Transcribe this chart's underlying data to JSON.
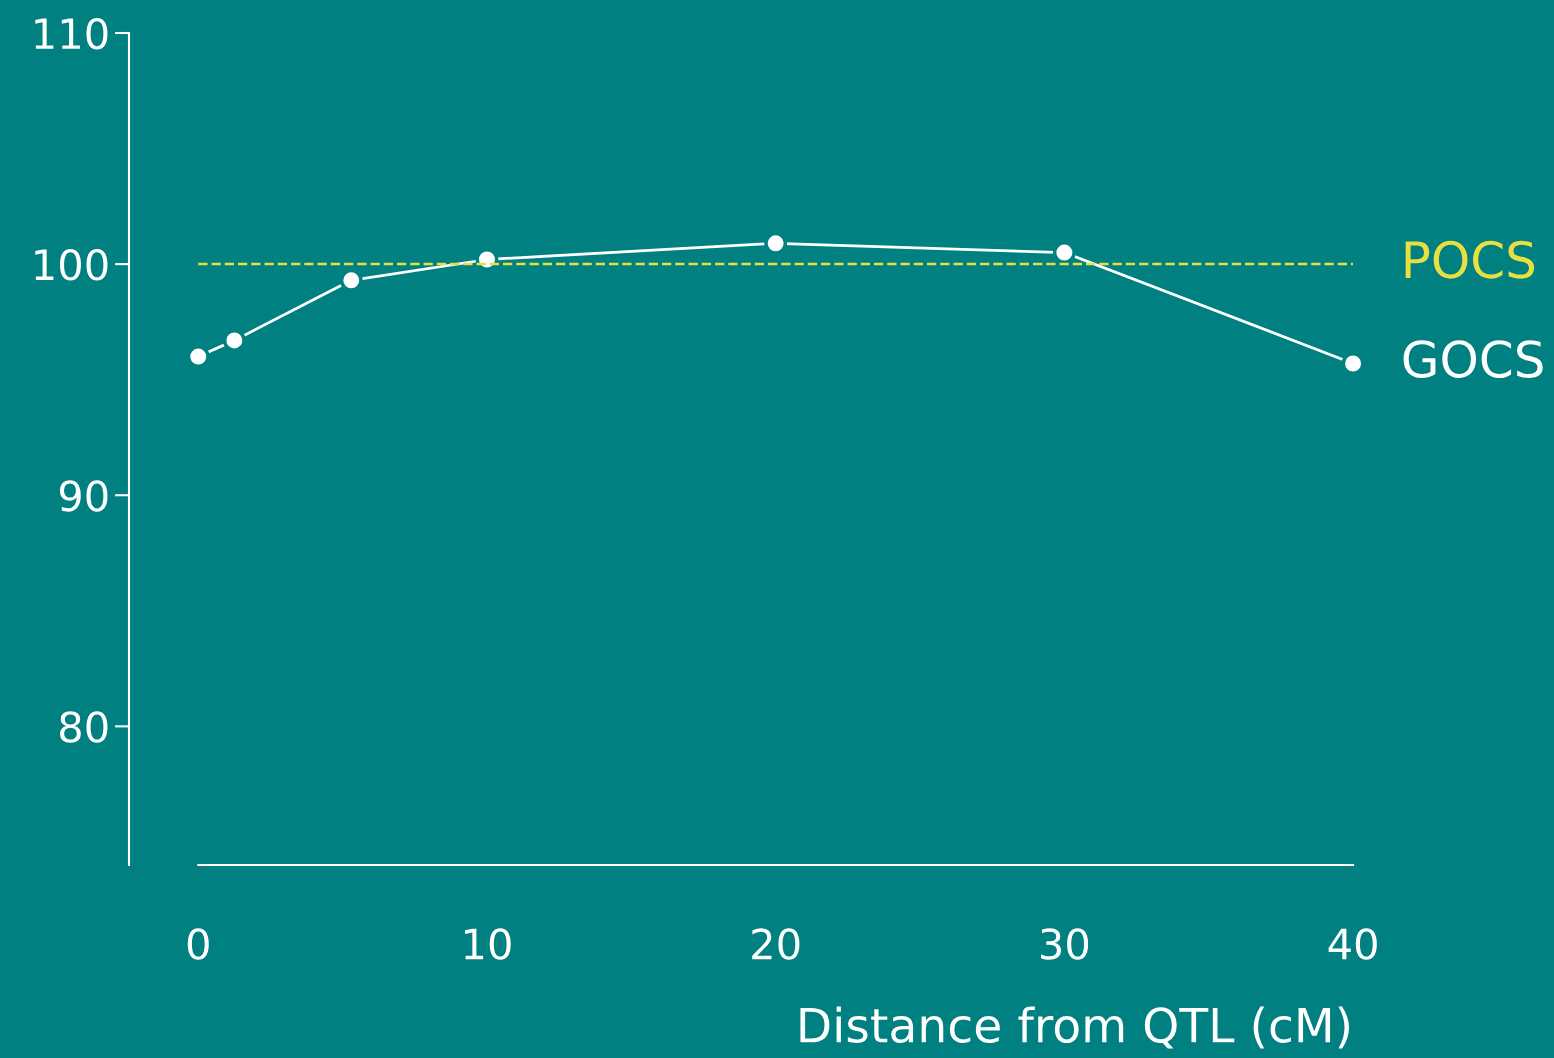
{
  "chart_data": {
    "type": "line",
    "x": [
      0,
      1.25,
      5.3,
      10,
      20,
      30,
      40
    ],
    "series": [
      {
        "name": "GOCS",
        "color": "#ffffff",
        "values": [
          96.0,
          96.7,
          99.3,
          100.2,
          100.9,
          100.5,
          95.7
        ]
      }
    ],
    "xlabel": "Distance from QTL (cM)",
    "xlim": [
      -2.4,
      40
    ],
    "xticks": [
      0,
      10,
      20,
      30,
      40
    ],
    "ylim": [
      74,
      110
    ],
    "yticks": [
      80,
      90,
      100,
      110
    ],
    "ref_lines": [
      {
        "axis": "y",
        "value": 100,
        "label": "POCS",
        "color": "#e8e040",
        "line_style": "dashed"
      }
    ],
    "marker": "circle",
    "line_style": "solid",
    "grid": false,
    "legend": false
  }
}
